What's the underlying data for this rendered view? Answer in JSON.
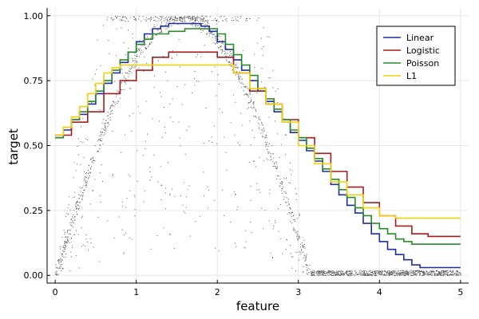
{
  "chart_data": {
    "type": "line",
    "xlabel": "feature",
    "ylabel": "target",
    "xlim": [
      -0.1,
      5.1
    ],
    "ylim": [
      -0.03,
      1.03
    ],
    "xticks": [
      0,
      1,
      2,
      3,
      4,
      5
    ],
    "xtick_labels": [
      "0",
      "1",
      "2",
      "3",
      "4",
      "5"
    ],
    "yticks": [
      0,
      0.25,
      0.5,
      0.75,
      1.0
    ],
    "ytick_labels": [
      "0.00",
      "0.25",
      "0.50",
      "0.75",
      "1.00"
    ],
    "grid": true,
    "legend_position": "top-right",
    "scatter": {
      "color": "#555555",
      "description": "noisy samples around sin(x)"
    },
    "series": [
      {
        "name": "Linear",
        "color": "#1f2f9f",
        "x": [
          0,
          0.1,
          0.2,
          0.3,
          0.4,
          0.5,
          0.6,
          0.7,
          0.8,
          0.9,
          1.0,
          1.1,
          1.2,
          1.3,
          1.4,
          1.5,
          1.6,
          1.7,
          1.8,
          1.9,
          2.0,
          2.1,
          2.2,
          2.3,
          2.4,
          2.5,
          2.6,
          2.7,
          2.8,
          2.9,
          3.0,
          3.1,
          3.2,
          3.3,
          3.4,
          3.5,
          3.6,
          3.7,
          3.8,
          3.9,
          4.0,
          4.1,
          4.2,
          4.3,
          4.4,
          4.5,
          4.6,
          4.7,
          4.8,
          4.9,
          5.0
        ],
        "y": [
          0.53,
          0.56,
          0.6,
          0.62,
          0.66,
          0.7,
          0.74,
          0.78,
          0.82,
          0.86,
          0.9,
          0.93,
          0.95,
          0.96,
          0.97,
          0.97,
          0.97,
          0.97,
          0.96,
          0.94,
          0.9,
          0.87,
          0.83,
          0.79,
          0.75,
          0.71,
          0.67,
          0.63,
          0.59,
          0.55,
          0.52,
          0.48,
          0.44,
          0.4,
          0.35,
          0.31,
          0.27,
          0.24,
          0.2,
          0.16,
          0.13,
          0.1,
          0.08,
          0.06,
          0.04,
          0.03,
          0.03,
          0.03,
          0.03,
          0.03,
          0.03
        ]
      },
      {
        "name": "Logistic",
        "color": "#a51c1c",
        "x": [
          0,
          0.2,
          0.4,
          0.6,
          0.8,
          1.0,
          1.2,
          1.4,
          1.6,
          1.8,
          2.0,
          2.2,
          2.4,
          2.6,
          2.8,
          3.0,
          3.2,
          3.4,
          3.6,
          3.8,
          4.0,
          4.2,
          4.4,
          4.6,
          4.8,
          5.0
        ],
        "y": [
          0.54,
          0.59,
          0.63,
          0.7,
          0.75,
          0.79,
          0.84,
          0.86,
          0.86,
          0.86,
          0.84,
          0.78,
          0.71,
          0.66,
          0.6,
          0.53,
          0.47,
          0.4,
          0.34,
          0.28,
          0.23,
          0.19,
          0.16,
          0.15,
          0.15,
          0.15
        ]
      },
      {
        "name": "Poisson",
        "color": "#2a8a2a",
        "x": [
          0,
          0.1,
          0.2,
          0.3,
          0.4,
          0.5,
          0.6,
          0.7,
          0.8,
          0.9,
          1.0,
          1.1,
          1.2,
          1.4,
          1.6,
          1.8,
          2.0,
          2.1,
          2.2,
          2.3,
          2.4,
          2.5,
          2.6,
          2.7,
          2.8,
          2.9,
          3.0,
          3.1,
          3.2,
          3.3,
          3.4,
          3.5,
          3.6,
          3.7,
          3.8,
          3.9,
          4.0,
          4.1,
          4.2,
          4.3,
          4.4,
          4.5,
          4.6,
          5.0
        ],
        "y": [
          0.53,
          0.57,
          0.6,
          0.63,
          0.67,
          0.71,
          0.75,
          0.79,
          0.83,
          0.86,
          0.89,
          0.91,
          0.93,
          0.94,
          0.95,
          0.95,
          0.93,
          0.89,
          0.85,
          0.81,
          0.77,
          0.72,
          0.68,
          0.64,
          0.6,
          0.56,
          0.53,
          0.49,
          0.45,
          0.41,
          0.37,
          0.33,
          0.3,
          0.26,
          0.23,
          0.2,
          0.18,
          0.16,
          0.14,
          0.13,
          0.12,
          0.12,
          0.12,
          0.12
        ]
      },
      {
        "name": "L1",
        "color": "#f2d010",
        "x": [
          0,
          0.1,
          0.2,
          0.3,
          0.4,
          0.5,
          0.6,
          0.7,
          0.8,
          1.0,
          1.2,
          1.4,
          1.6,
          1.8,
          2.0,
          2.2,
          2.4,
          2.6,
          2.8,
          3.0,
          3.2,
          3.4,
          3.6,
          3.8,
          4.0,
          4.2,
          4.4,
          4.6,
          4.8,
          5.0
        ],
        "y": [
          0.54,
          0.57,
          0.61,
          0.65,
          0.7,
          0.74,
          0.78,
          0.8,
          0.81,
          0.81,
          0.81,
          0.81,
          0.81,
          0.81,
          0.81,
          0.78,
          0.72,
          0.66,
          0.59,
          0.5,
          0.43,
          0.36,
          0.31,
          0.26,
          0.23,
          0.22,
          0.22,
          0.22,
          0.22,
          0.22
        ]
      }
    ]
  }
}
